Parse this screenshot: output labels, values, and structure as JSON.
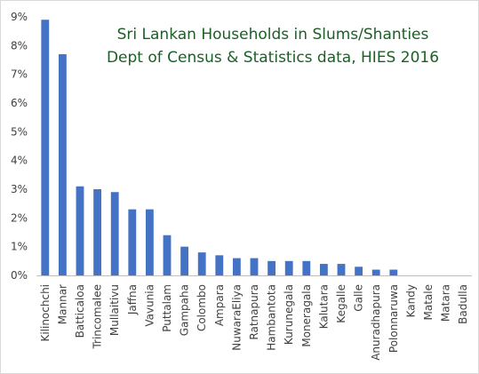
{
  "chart_data": {
    "type": "bar",
    "title": "Sri Lankan Households in Slums/Shanties",
    "subtitle": "Dept of Census & Statistics data, HIES 2016",
    "xlabel": "",
    "ylabel": "",
    "ylim": [
      0,
      9
    ],
    "y_tick_values": [
      0,
      1,
      2,
      3,
      4,
      5,
      6,
      7,
      8,
      9
    ],
    "y_tick_labels": [
      "0%",
      "1%",
      "2%",
      "3%",
      "4%",
      "5%",
      "6%",
      "7%",
      "8%",
      "9%"
    ],
    "value_unit": "percent",
    "grid": false,
    "legend": "none",
    "categories": [
      "Kilinochchi",
      "Mannar",
      "Batticaloa",
      "Trincomalee",
      "Mullaitivu",
      "Jaffna",
      "Vavunia",
      "Puttalam",
      "Gampaha",
      "Colombo",
      "Ampara",
      "NuwaraEliya",
      "Ratnapura",
      "Hambantota",
      "Kurunegala",
      "Moneragala",
      "Kalutara",
      "Kegalle",
      "Galle",
      "Anuradhapura",
      "Polonnaruwa",
      "Kandy",
      "Matale",
      "Matara",
      "Badulla"
    ],
    "values": [
      8.9,
      7.7,
      3.1,
      3.0,
      2.9,
      2.3,
      2.3,
      1.4,
      1.0,
      0.8,
      0.7,
      0.6,
      0.6,
      0.5,
      0.5,
      0.5,
      0.4,
      0.4,
      0.3,
      0.2,
      0.2,
      0.0,
      0.0,
      0.0,
      0.0
    ],
    "colors": {
      "bar": "#4472c4",
      "title": "#1a5f26",
      "axis": "#bfbfbf",
      "text": "#404040"
    }
  }
}
